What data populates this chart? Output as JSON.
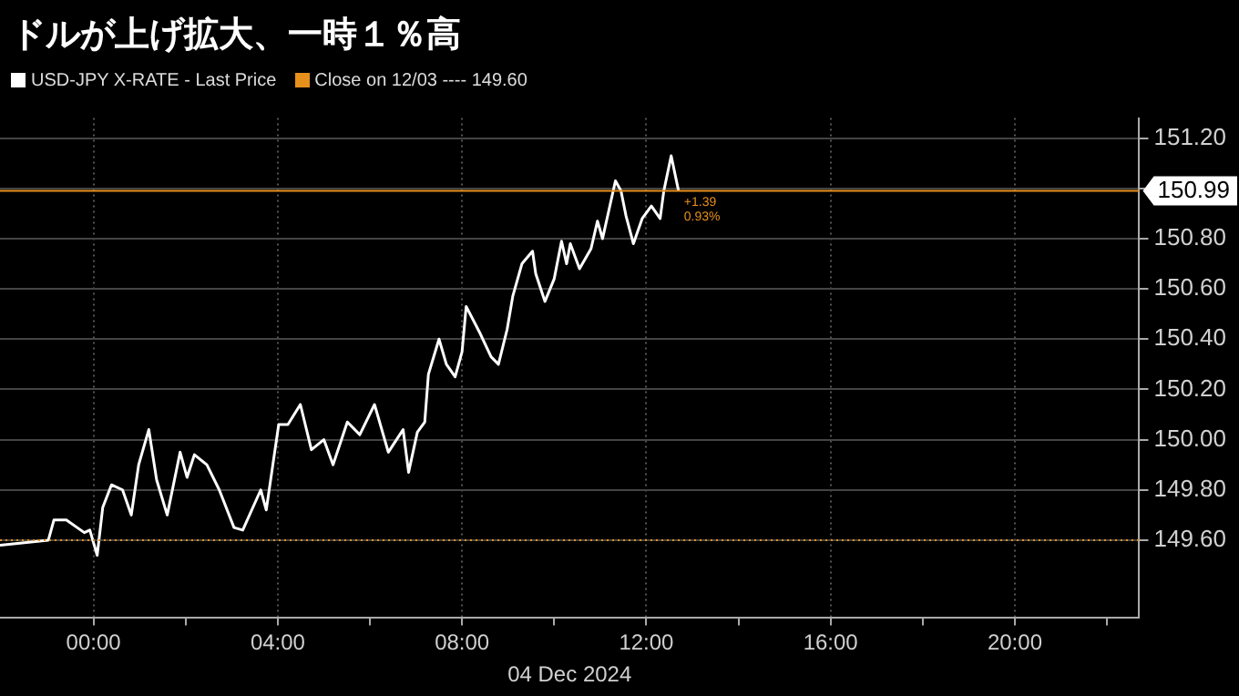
{
  "chart_data": {
    "type": "line",
    "title": "ドルが上げ拡大、一時１％高",
    "xlabel": "04 Dec 2024",
    "x": [
      -2.03,
      -0.98,
      -0.86,
      -0.59,
      -0.2,
      -0.08,
      0.08,
      0.2,
      0.39,
      0.63,
      0.82,
      0.98,
      1.2,
      1.37,
      1.6,
      1.88,
      2.03,
      2.19,
      2.46,
      2.73,
      3.05,
      3.24,
      3.63,
      3.75,
      4.02,
      4.22,
      4.49,
      4.73,
      5.0,
      5.2,
      5.51,
      5.78,
      6.1,
      6.4,
      6.72,
      6.84,
      7.03,
      7.19,
      7.27,
      7.5,
      7.66,
      7.85,
      8.0,
      8.09,
      8.4,
      8.63,
      8.79,
      8.98,
      9.1,
      9.3,
      9.53,
      9.6,
      9.8,
      10.0,
      10.16,
      10.27,
      10.35,
      10.55,
      10.8,
      10.94,
      11.05,
      11.33,
      11.45,
      11.56,
      11.72,
      11.91,
      12.11,
      12.3,
      12.38,
      12.54,
      12.7
    ],
    "series": [
      {
        "name": "USD-JPY X-RATE - Last Price",
        "color": "#ffffff",
        "values": [
          149.58,
          149.6,
          149.68,
          149.68,
          149.63,
          149.64,
          149.54,
          149.73,
          149.82,
          149.8,
          149.7,
          149.9,
          150.04,
          149.84,
          149.7,
          149.95,
          149.85,
          149.94,
          149.9,
          149.8,
          149.65,
          149.64,
          149.8,
          149.72,
          150.06,
          150.06,
          150.14,
          149.96,
          150.0,
          149.9,
          150.07,
          150.02,
          150.14,
          149.95,
          150.04,
          149.87,
          150.03,
          150.07,
          150.26,
          150.4,
          150.3,
          150.25,
          150.35,
          150.53,
          150.42,
          150.33,
          150.3,
          150.44,
          150.57,
          150.7,
          150.75,
          150.66,
          150.55,
          150.64,
          150.79,
          150.7,
          150.78,
          150.68,
          150.76,
          150.87,
          150.8,
          151.03,
          150.99,
          150.89,
          150.78,
          150.88,
          150.93,
          150.88,
          150.99,
          151.13,
          150.99
        ]
      }
    ],
    "xlim": [
      -2.03,
      22.7
    ],
    "xticks": [
      {
        "value": 0,
        "label": "00:00"
      },
      {
        "value": 2,
        "label": null
      },
      {
        "value": 4,
        "label": "04:00"
      },
      {
        "value": 6,
        "label": null
      },
      {
        "value": 8,
        "label": "08:00"
      },
      {
        "value": 10,
        "label": null
      },
      {
        "value": 12,
        "label": "12:00"
      },
      {
        "value": 14,
        "label": null
      },
      {
        "value": 16,
        "label": "16:00"
      },
      {
        "value": 18,
        "label": null
      },
      {
        "value": 20,
        "label": "20:00"
      },
      {
        "value": 22,
        "label": null
      }
    ],
    "ylim": [
      149.29,
      151.28
    ],
    "yticks": [
      {
        "value": 149.6,
        "label": "149.60"
      },
      {
        "value": 149.8,
        "label": "149.80"
      },
      {
        "value": 150,
        "label": "150.00"
      },
      {
        "value": 150.2,
        "label": "150.20"
      },
      {
        "value": 150.4,
        "label": "150.40"
      },
      {
        "value": 150.6,
        "label": "150.60"
      },
      {
        "value": 150.8,
        "label": "150.80"
      },
      {
        "value": 151,
        "label": null
      },
      {
        "value": 151.2,
        "label": "151.20"
      }
    ],
    "ref_lines": [
      {
        "axis": "y",
        "value": 149.6,
        "label": "Close on 12/03 ---- 149.60",
        "color": "#e8901c",
        "line_style": "dotted"
      },
      {
        "axis": "y",
        "value": 150.99,
        "label": "150.99",
        "color": "#e8901c",
        "line_style": "solid"
      }
    ],
    "annotations": [
      {
        "text": "+1.39",
        "x": 12.7,
        "y": 150.99
      },
      {
        "text": "0.93%",
        "x": 12.7,
        "y": 150.99
      }
    ],
    "grid": true,
    "legend": "top left",
    "marker": "none",
    "line_style": "solid"
  }
}
